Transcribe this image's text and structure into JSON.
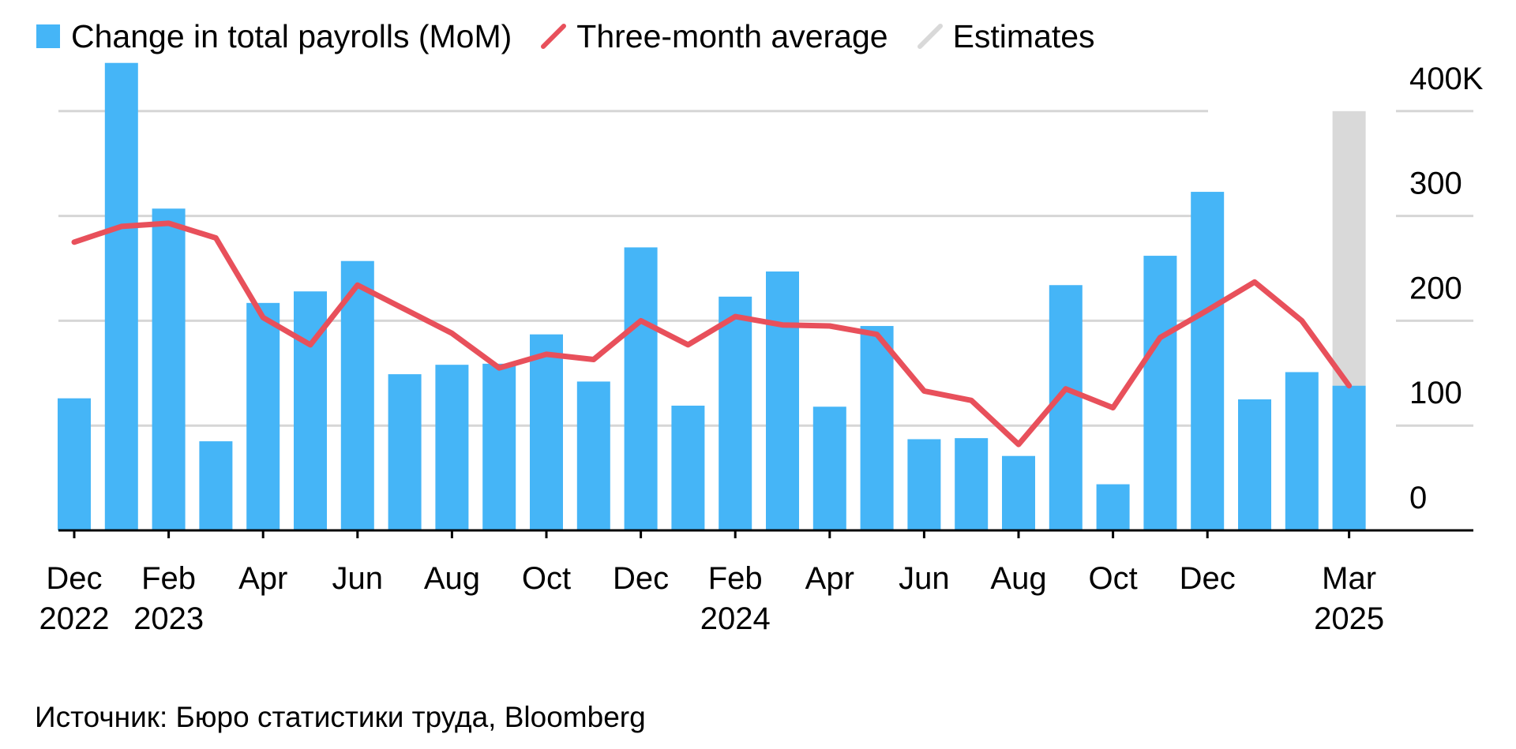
{
  "legend": {
    "bar_label": "Change in total payrolls (MoM)",
    "line_label": "Three-month average",
    "estimate_label": "Estimates"
  },
  "source": "Источник: Бюро статистики труда, Bloomberg",
  "colors": {
    "bars": "#45b5f7",
    "line": "#e8505b",
    "estimate_band": "#d9d9d9",
    "grid": "#d6d6d6",
    "axis": "#000000"
  },
  "chart_data": {
    "type": "bar",
    "categories": [
      "Dec 2022",
      "Jan 2023",
      "Feb 2023",
      "Mar 2023",
      "Apr 2023",
      "May 2023",
      "Jun 2023",
      "Jul 2023",
      "Aug 2023",
      "Sep 2023",
      "Oct 2023",
      "Nov 2023",
      "Dec 2023",
      "Jan 2024",
      "Feb 2024",
      "Mar 2024",
      "Apr 2024",
      "May 2024",
      "Jun 2024",
      "Jul 2024",
      "Aug 2024",
      "Sep 2024",
      "Oct 2024",
      "Nov 2024",
      "Dec 2024",
      "Jan 2025",
      "Feb 2025",
      "Mar 2025"
    ],
    "series": [
      {
        "name": "Change in total payrolls (MoM)",
        "type": "bar",
        "values": [
          126,
          446,
          307,
          85,
          217,
          228,
          257,
          149,
          158,
          159,
          187,
          142,
          270,
          119,
          223,
          247,
          118,
          195,
          87,
          88,
          71,
          234,
          44,
          262,
          323,
          125,
          151,
          138
        ]
      },
      {
        "name": "Three-month average",
        "type": "line",
        "values": [
          275,
          290,
          293,
          279,
          203,
          177,
          234,
          211,
          188,
          155,
          168,
          163,
          200,
          177,
          204,
          196,
          195,
          187,
          133,
          124,
          82,
          135,
          117,
          184,
          210,
          237,
          200,
          138
        ]
      }
    ],
    "estimates_from": "Mar 2025",
    "y_ticks": [
      "0",
      "100",
      "200",
      "300",
      "400K"
    ],
    "y_tick_values": [
      0,
      100,
      200,
      300,
      400
    ],
    "ylim": [
      0,
      450
    ],
    "x_ticks": [
      {
        "category": "Dec 2022",
        "month": "Dec",
        "year": "2022"
      },
      {
        "category": "Feb 2023",
        "month": "Feb",
        "year": "2023"
      },
      {
        "category": "Apr 2023",
        "month": "Apr",
        "year": ""
      },
      {
        "category": "Jun 2023",
        "month": "Jun",
        "year": ""
      },
      {
        "category": "Aug 2023",
        "month": "Aug",
        "year": ""
      },
      {
        "category": "Oct 2023",
        "month": "Oct",
        "year": ""
      },
      {
        "category": "Dec 2023",
        "month": "Dec",
        "year": ""
      },
      {
        "category": "Feb 2024",
        "month": "Feb",
        "year": "2024"
      },
      {
        "category": "Apr 2024",
        "month": "Apr",
        "year": ""
      },
      {
        "category": "Jun 2024",
        "month": "Jun",
        "year": ""
      },
      {
        "category": "Aug 2024",
        "month": "Aug",
        "year": ""
      },
      {
        "category": "Oct 2024",
        "month": "Oct",
        "year": ""
      },
      {
        "category": "Dec 2024",
        "month": "Dec",
        "year": ""
      },
      {
        "category": "Mar 2025",
        "month": "Mar",
        "year": "2025"
      }
    ],
    "grid": true,
    "y_axis_side": "right",
    "legend_position": "top-left"
  }
}
